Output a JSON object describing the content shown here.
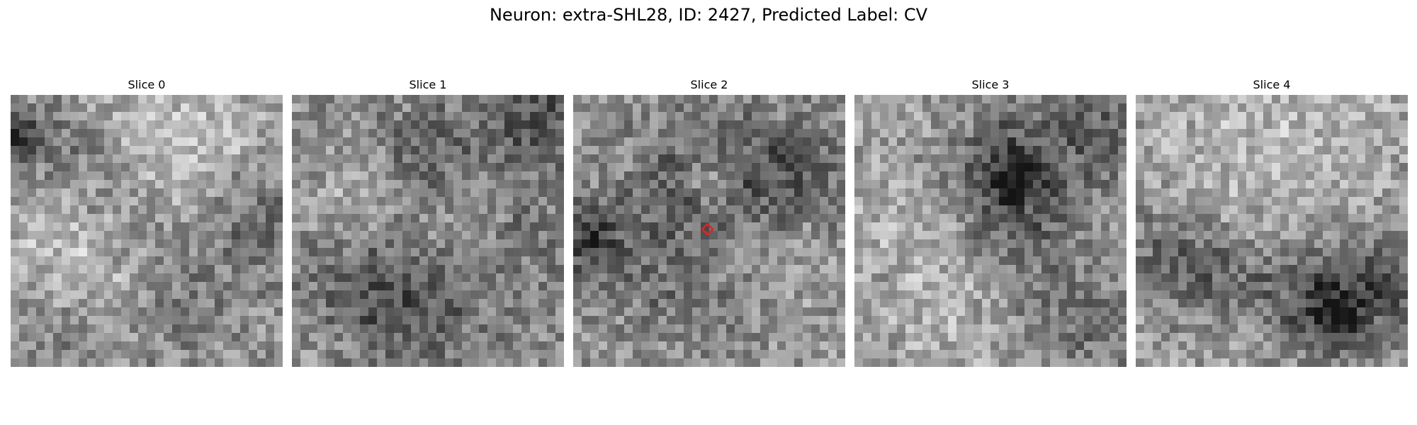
{
  "title": "Neuron: extra-SHL28, ID: 2427, Predicted Label: CV",
  "colors": {
    "background": "#ffffff",
    "marker": "#d62728"
  },
  "grid_size": 32,
  "panels": [
    {
      "title": "Slice 0",
      "seed": 101,
      "base": 0.58,
      "features": [
        {
          "x": 13.5,
          "y": 2.5,
          "r": 5.2,
          "a": 0.18
        },
        {
          "x": 24.0,
          "y": 8.0,
          "r": 6.0,
          "a": 0.18
        },
        {
          "x": 8.0,
          "y": 6.0,
          "r": 4.8,
          "a": -0.18
        },
        {
          "x": 0.5,
          "y": 5.0,
          "r": 2.2,
          "a": -0.35
        },
        {
          "x": 28.0,
          "y": 14.0,
          "r": 5.0,
          "a": -0.22
        },
        {
          "x": 4.5,
          "y": 15.0,
          "r": 4.2,
          "a": 0.14
        },
        {
          "x": 11.5,
          "y": 22.5,
          "r": 5.0,
          "a": 0.15
        },
        {
          "x": 8.0,
          "y": 28.0,
          "r": 3.0,
          "a": -0.12
        },
        {
          "x": 19.0,
          "y": 25.0,
          "r": 4.0,
          "a": -0.13
        },
        {
          "x": 15.0,
          "y": 18.0,
          "r": 3.0,
          "a": -0.08
        }
      ]
    },
    {
      "title": "Slice 1",
      "seed": 202,
      "base": 0.56,
      "features": [
        {
          "x": 15.5,
          "y": 7.5,
          "r": 4.6,
          "a": -0.2
        },
        {
          "x": 28.5,
          "y": 3.0,
          "r": 4.5,
          "a": -0.23
        },
        {
          "x": 8.5,
          "y": 12.0,
          "r": 5.4,
          "a": 0.14
        },
        {
          "x": 20.0,
          "y": 15.0,
          "r": 5.0,
          "a": 0.09
        },
        {
          "x": 9.0,
          "y": 23.0,
          "r": 5.6,
          "a": -0.2
        },
        {
          "x": 17.0,
          "y": 24.0,
          "r": 6.0,
          "a": -0.14
        },
        {
          "x": 27.5,
          "y": 17.0,
          "r": 4.0,
          "a": -0.12
        },
        {
          "x": 2.5,
          "y": 30.0,
          "r": 3.0,
          "a": 0.08
        }
      ]
    },
    {
      "title": "Slice 2",
      "seed": 303,
      "base": 0.58,
      "features": [
        {
          "x": 16.0,
          "y": 10.5,
          "r": 6.2,
          "a": -0.26
        },
        {
          "x": 16.0,
          "y": 10.0,
          "r": 2.2,
          "a": 0.28
        },
        {
          "x": 26.0,
          "y": 9.0,
          "r": 4.5,
          "a": -0.18
        },
        {
          "x": 1.5,
          "y": 16.5,
          "r": 3.0,
          "a": -0.34
        },
        {
          "x": 22.0,
          "y": 18.0,
          "r": 4.5,
          "a": 0.1
        },
        {
          "x": 9.0,
          "y": 21.0,
          "r": 4.5,
          "a": -0.1
        },
        {
          "x": 17.0,
          "y": 25.0,
          "r": 4.0,
          "a": -0.09
        }
      ],
      "marker": {
        "x": 15.8,
        "y": 15.8
      }
    },
    {
      "title": "Slice 3",
      "seed": 404,
      "base": 0.62,
      "features": [
        {
          "x": 18.5,
          "y": 10.0,
          "r": 5.8,
          "a": -0.36
        },
        {
          "x": 18.5,
          "y": 9.5,
          "r": 2.0,
          "a": -0.2
        },
        {
          "x": 30.0,
          "y": 3.0,
          "r": 5.0,
          "a": -0.2
        },
        {
          "x": 9.0,
          "y": 14.0,
          "r": 6.0,
          "a": 0.08
        },
        {
          "x": 22.0,
          "y": 23.0,
          "r": 5.0,
          "a": -0.13
        },
        {
          "x": 12.0,
          "y": 25.0,
          "r": 5.0,
          "a": 0.09
        },
        {
          "x": 29.0,
          "y": 28.0,
          "r": 4.0,
          "a": -0.16
        }
      ]
    },
    {
      "title": "Slice 4",
      "seed": 505,
      "base": 0.62,
      "features": [
        {
          "x": 16.0,
          "y": 8.0,
          "r": 9.0,
          "a": 0.11
        },
        {
          "x": 4.0,
          "y": 19.0,
          "r": 4.2,
          "a": -0.22
        },
        {
          "x": 11.0,
          "y": 22.0,
          "r": 4.5,
          "a": -0.16
        },
        {
          "x": 22.5,
          "y": 24.5,
          "r": 5.5,
          "a": -0.33
        },
        {
          "x": 23.0,
          "y": 26.0,
          "r": 2.0,
          "a": -0.18
        },
        {
          "x": 30.0,
          "y": 22.0,
          "r": 4.5,
          "a": -0.18
        },
        {
          "x": 15.0,
          "y": 29.0,
          "r": 4.0,
          "a": 0.07
        }
      ]
    }
  ]
}
